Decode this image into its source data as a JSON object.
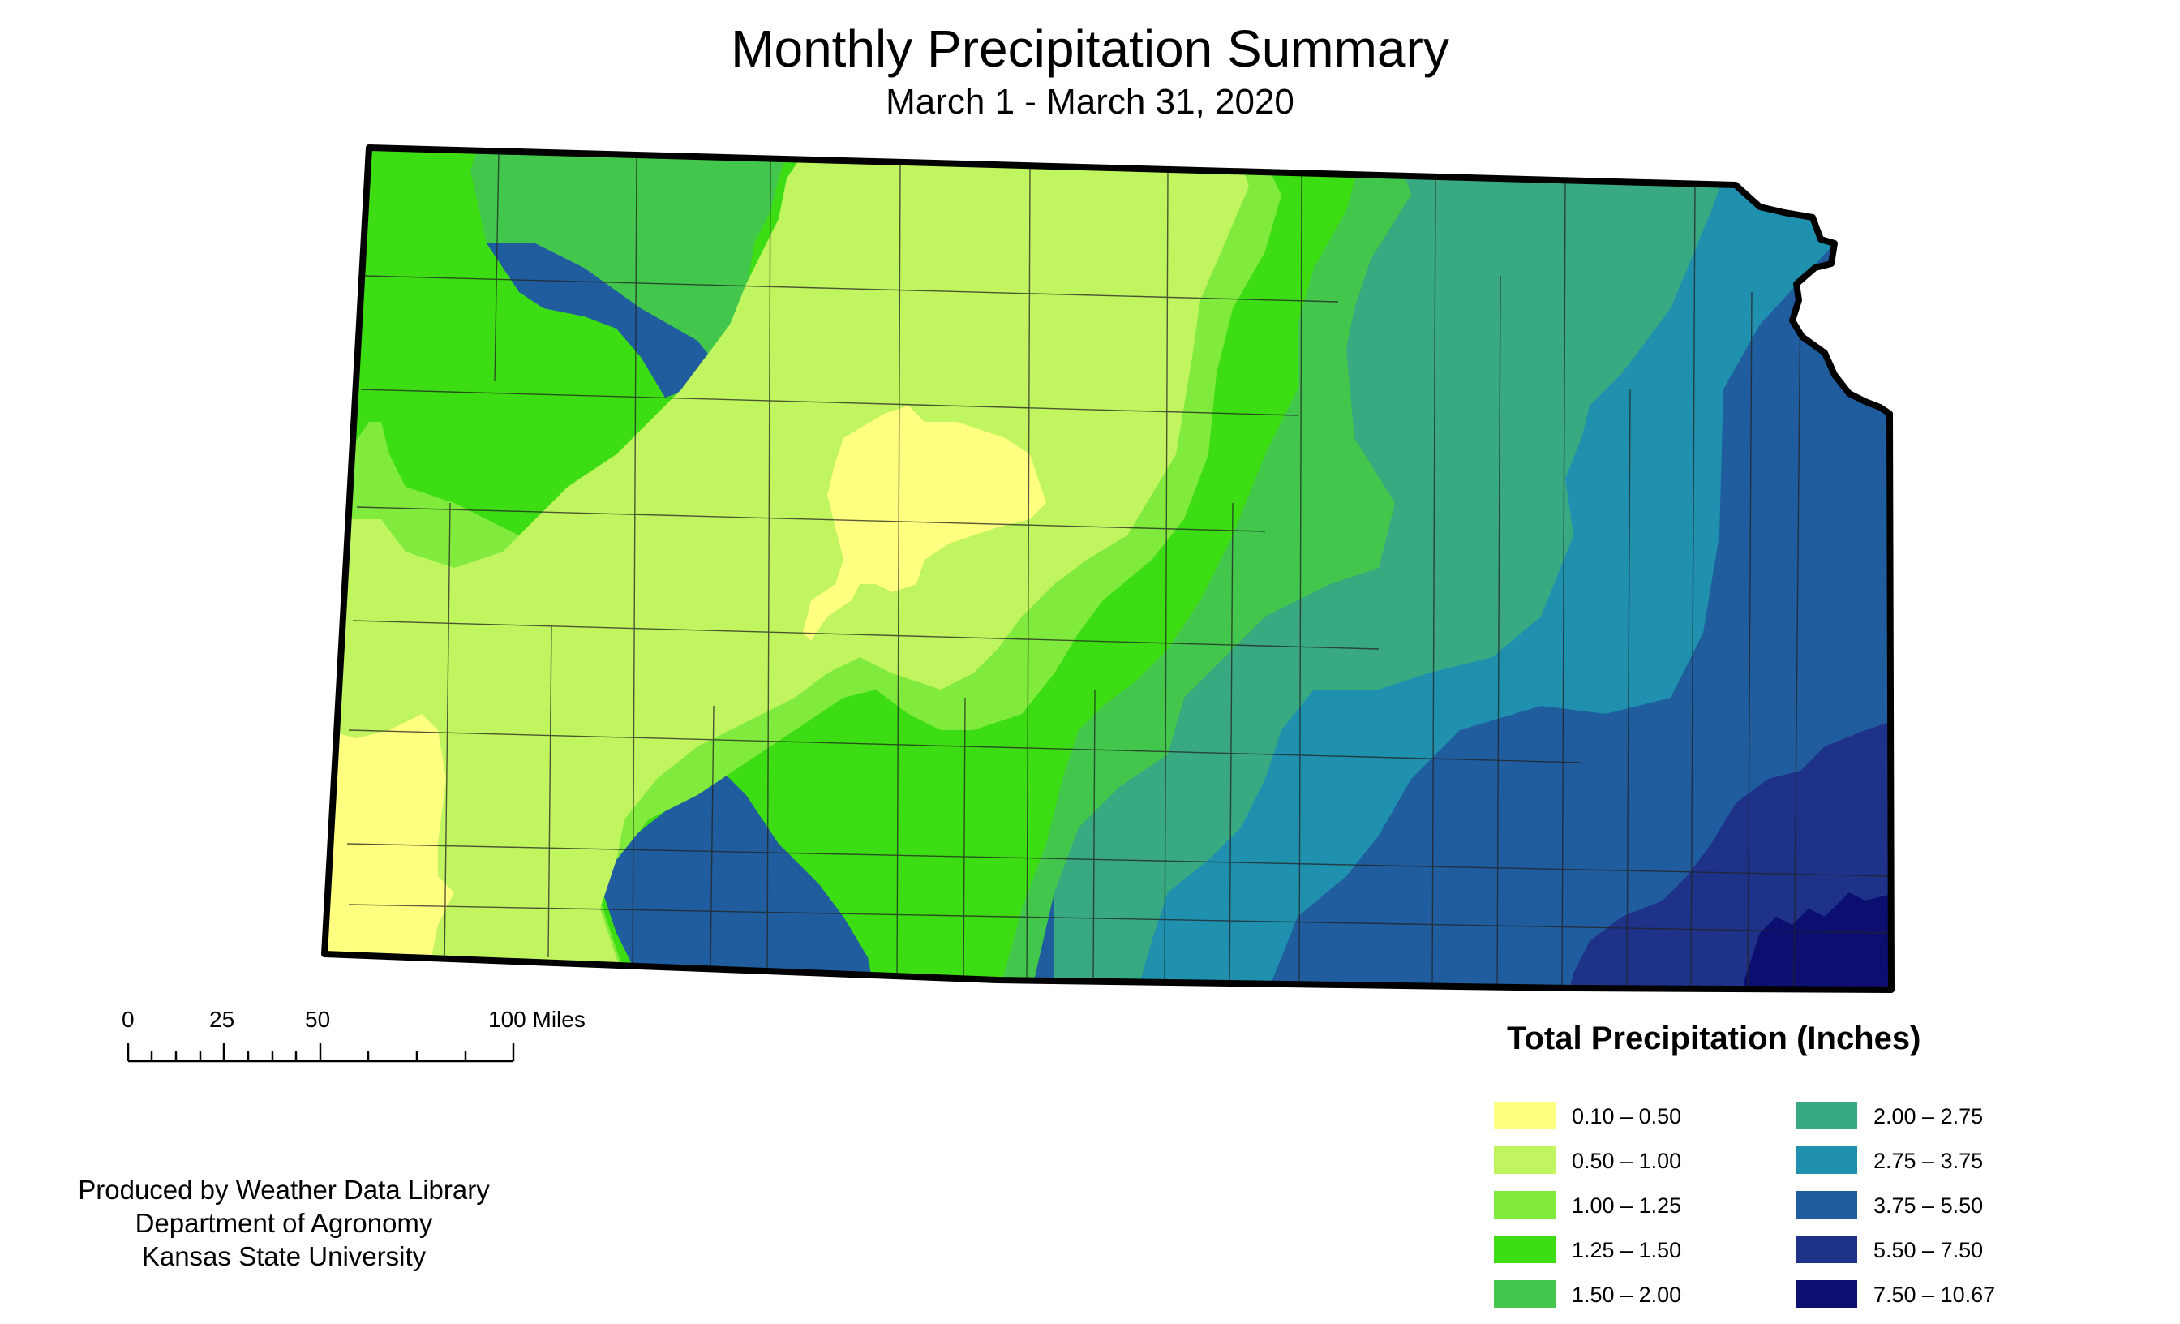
{
  "title": "Monthly Precipitation Summary",
  "subtitle": "March 1 - March 31, 2020",
  "scale_bar": {
    "labels": [
      "0",
      "25",
      "50",
      "100 Miles"
    ]
  },
  "credits": {
    "line1": "Produced by Weather Data Library",
    "line2": "Department of Agronomy",
    "line3": "Kansas State University"
  },
  "legend": {
    "title": "Total Precipitation (Inches)",
    "classes": [
      {
        "label": "0.10 – 0.50",
        "color": "#ffff80"
      },
      {
        "label": "0.50 – 1.00",
        "color": "#c0f560"
      },
      {
        "label": "1.00 – 1.25",
        "color": "#80eb3c"
      },
      {
        "label": "1.25 – 1.50",
        "color": "#3ddd14"
      },
      {
        "label": "1.50 – 2.00",
        "color": "#42c64c"
      },
      {
        "label": "2.00 – 2.75",
        "color": "#39a982"
      },
      {
        "label": "2.75 – 3.75",
        "color": "#1f91af"
      },
      {
        "label": "3.75 – 5.50",
        "color": "#205d9f"
      },
      {
        "label": "5.50 – 7.50",
        "color": "#1f3289"
      },
      {
        "label": "7.50 – 10.67",
        "color": "#0c0e70"
      }
    ]
  }
}
